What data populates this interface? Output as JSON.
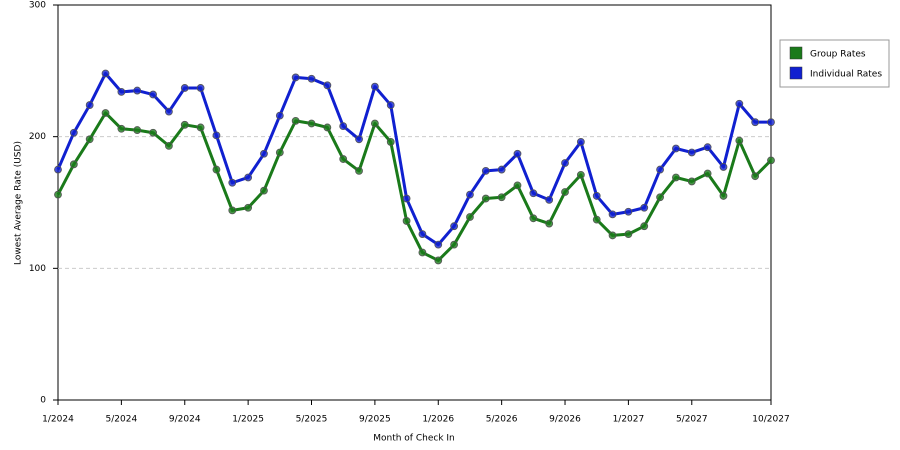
{
  "chart_data": {
    "type": "line",
    "x_label": "Month of Check In",
    "y_label": "Lowest Average Rate (USD)",
    "categories": [
      "1/2024",
      null,
      null,
      null,
      "5/2024",
      null,
      null,
      null,
      "9/2024",
      null,
      null,
      null,
      "1/2025",
      null,
      null,
      null,
      "5/2025",
      null,
      null,
      null,
      "9/2025",
      null,
      null,
      null,
      "1/2026",
      null,
      null,
      null,
      "5/2026",
      null,
      null,
      null,
      "9/2026",
      null,
      null,
      null,
      "1/2027",
      null,
      null,
      null,
      "5/2027",
      null,
      null,
      null,
      null,
      "10/2027"
    ],
    "series": [
      {
        "name": "Group Rates",
        "color": "#1a7a1a",
        "values": [
          156,
          179,
          198,
          218,
          206,
          205,
          203,
          193,
          209,
          207,
          175,
          144,
          146,
          159,
          188,
          212,
          210,
          207,
          183,
          174,
          210,
          196,
          136,
          112,
          106,
          118,
          139,
          153,
          154,
          163,
          138,
          134,
          158,
          171,
          137,
          125,
          126,
          132,
          154,
          169,
          166,
          172,
          155,
          197,
          170,
          182
        ]
      },
      {
        "name": "Individual Rates",
        "color": "#1020d0",
        "values": [
          175,
          203,
          224,
          248,
          234,
          235,
          232,
          219,
          237,
          237,
          201,
          165,
          169,
          187,
          216,
          245,
          244,
          239,
          208,
          198,
          238,
          224,
          153,
          126,
          118,
          132,
          156,
          174,
          175,
          187,
          157,
          152,
          180,
          196,
          155,
          141,
          143,
          146,
          175,
          191,
          188,
          192,
          177,
          225,
          211,
          211
        ]
      }
    ],
    "ylim": [
      0,
      300
    ],
    "yticks": [
      0,
      100,
      200,
      300
    ],
    "grid": true,
    "legend": "right"
  }
}
